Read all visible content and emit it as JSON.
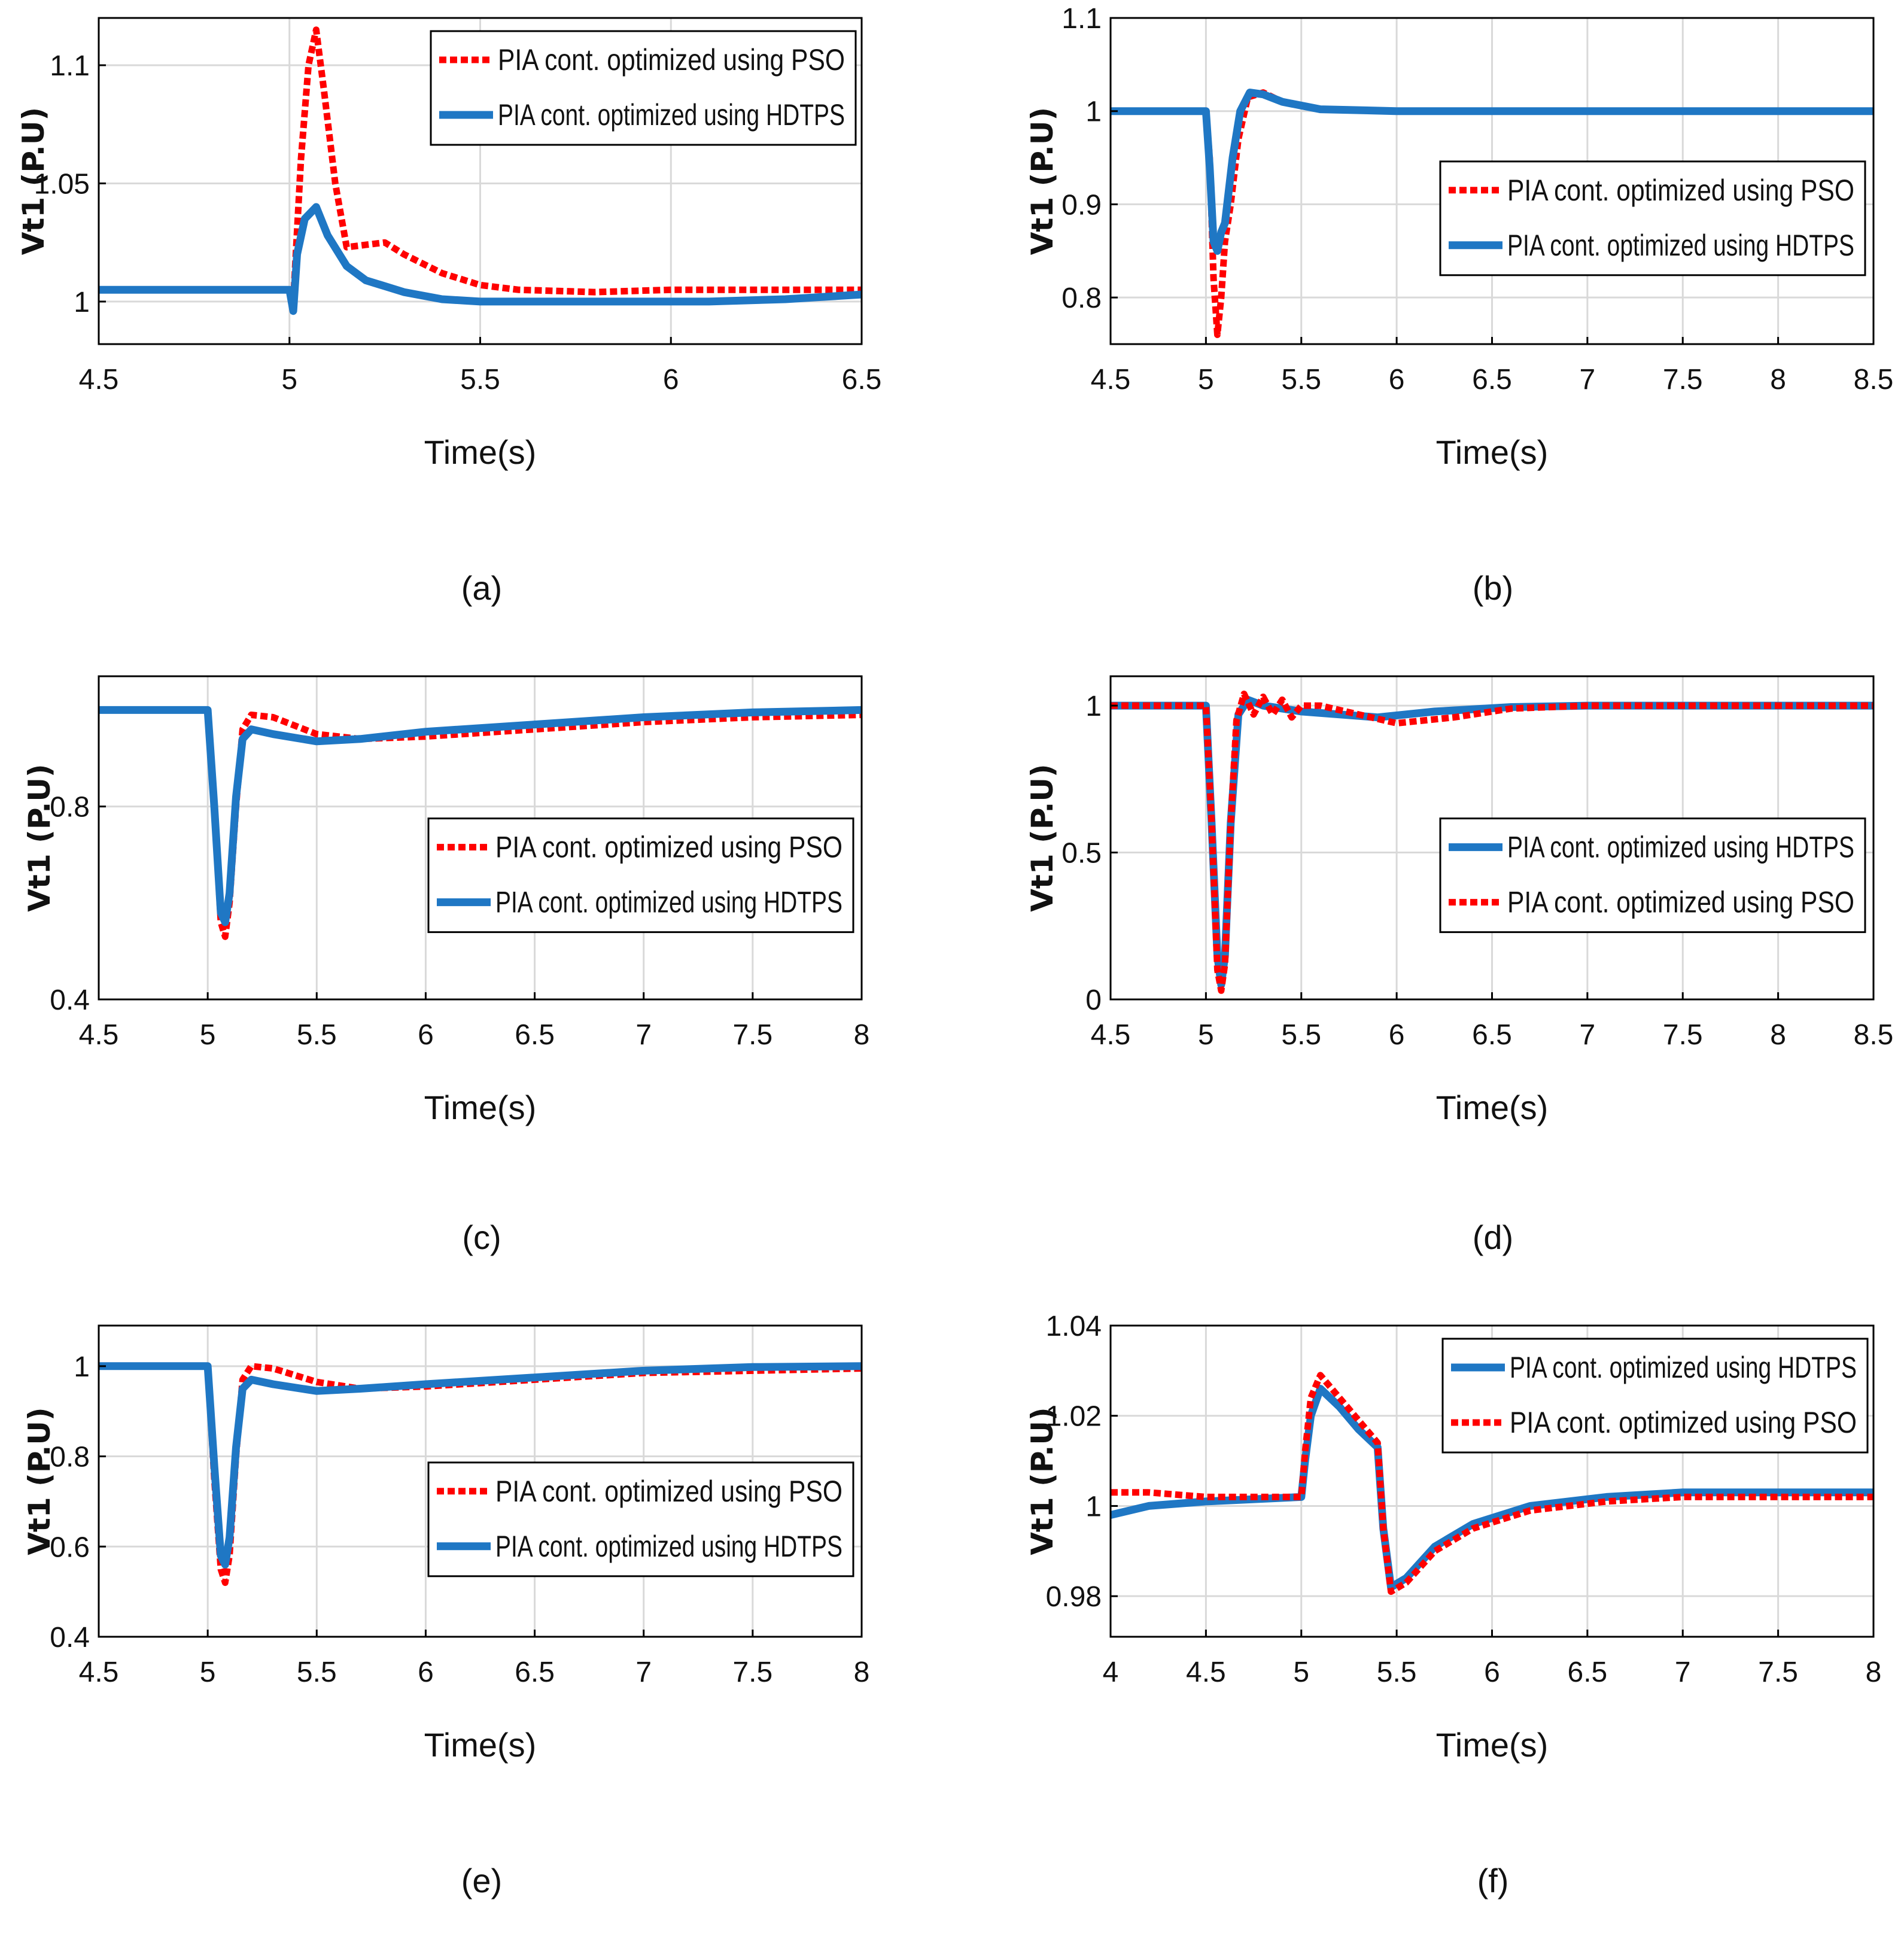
{
  "colors": {
    "pso": "#ff0000",
    "hdtps": "#1f77c4",
    "grid": "#d9d9d9",
    "axis": "#000000"
  },
  "chart_data": [
    {
      "type": "line",
      "caption": "(a)",
      "title": "",
      "xlabel": "Time(s)",
      "ylabel": "Vt1 (P.U)",
      "xlim": [
        4.5,
        6.5
      ],
      "ylim": [
        0.982,
        1.12
      ],
      "xticks": [
        4.5,
        5,
        5.5,
        6,
        6.5
      ],
      "xtick_labels": [
        "4.5",
        "5",
        "5.5",
        "6",
        "6.5"
      ],
      "yticks": [
        1,
        1.05,
        1.1
      ],
      "ytick_labels": [
        "1",
        "1.05",
        "1.1"
      ],
      "grid": true,
      "legend_position": "top-right",
      "series": [
        {
          "name": "PIA cont. optimized using PSO",
          "key": "pso",
          "style": "dotted",
          "x": [
            4.5,
            5.0,
            5.01,
            5.03,
            5.05,
            5.07,
            5.09,
            5.12,
            5.15,
            5.2,
            5.25,
            5.3,
            5.4,
            5.5,
            5.6,
            5.8,
            6.0,
            6.2,
            6.5
          ],
          "y": [
            1.005,
            1.005,
            1.0,
            1.06,
            1.1,
            1.115,
            1.09,
            1.05,
            1.023,
            1.024,
            1.025,
            1.02,
            1.012,
            1.007,
            1.005,
            1.004,
            1.005,
            1.005,
            1.005
          ]
        },
        {
          "name": "PIA cont. optimized using HDTPS",
          "key": "hdtps",
          "style": "solid",
          "x": [
            4.5,
            5.0,
            5.01,
            5.02,
            5.04,
            5.07,
            5.1,
            5.15,
            5.2,
            5.3,
            5.4,
            5.5,
            5.7,
            5.9,
            6.1,
            6.3,
            6.5
          ],
          "y": [
            1.005,
            1.005,
            0.996,
            1.02,
            1.035,
            1.04,
            1.028,
            1.015,
            1.009,
            1.004,
            1.001,
            1.0,
            1.0,
            1.0,
            1.0,
            1.001,
            1.003
          ]
        }
      ]
    },
    {
      "type": "line",
      "caption": "(b)",
      "title": "",
      "xlabel": "Time(s)",
      "ylabel": "Vt1 (P.U)",
      "xlim": [
        4.5,
        8.5
      ],
      "ylim": [
        0.75,
        1.1
      ],
      "xticks": [
        4.5,
        5,
        5.5,
        6,
        6.5,
        7,
        7.5,
        8,
        8.5
      ],
      "xtick_labels": [
        "4.5",
        "5",
        "5.5",
        "6",
        "6.5",
        "7",
        "7.5",
        "8",
        "8.5"
      ],
      "yticks": [
        0.8,
        0.9,
        1,
        1.1
      ],
      "ytick_labels": [
        "0.8",
        "0.9",
        "1",
        "1.1"
      ],
      "grid": true,
      "legend_position": "center-right",
      "series": [
        {
          "name": "PIA cont. optimized using PSO",
          "key": "pso",
          "style": "dotted",
          "x": [
            4.5,
            5.0,
            5.02,
            5.04,
            5.06,
            5.08,
            5.1,
            5.13,
            5.17,
            5.22,
            5.3,
            5.4,
            5.6,
            6.0,
            7.0,
            8.5
          ],
          "y": [
            1.0,
            1.0,
            0.95,
            0.82,
            0.76,
            0.8,
            0.86,
            0.9,
            0.97,
            1.015,
            1.02,
            1.01,
            1.002,
            1.0,
            1.0,
            1.0
          ]
        },
        {
          "name": "PIA cont. optimized using HDTPS",
          "key": "hdtps",
          "style": "solid",
          "x": [
            4.5,
            5.0,
            5.02,
            5.04,
            5.06,
            5.08,
            5.1,
            5.14,
            5.18,
            5.23,
            5.3,
            5.4,
            5.6,
            6.0,
            7.0,
            8.5
          ],
          "y": [
            1.0,
            1.0,
            0.94,
            0.86,
            0.85,
            0.87,
            0.88,
            0.95,
            1.0,
            1.02,
            1.018,
            1.01,
            1.002,
            1.0,
            1.0,
            1.0
          ]
        }
      ]
    },
    {
      "type": "line",
      "caption": "(c)",
      "title": "",
      "xlabel": "Time(s)",
      "ylabel": "Vt1 (P.U)",
      "xlim": [
        4.5,
        8
      ],
      "ylim": [
        0.4,
        1.07
      ],
      "xticks": [
        4.5,
        5,
        5.5,
        6,
        6.5,
        7,
        7.5,
        8
      ],
      "xtick_labels": [
        "4.5",
        "5",
        "5.5",
        "6",
        "6.5",
        "7",
        "7.5",
        "8"
      ],
      "yticks": [
        0.4,
        0.8
      ],
      "ytick_labels": [
        "0.4",
        "0.8"
      ],
      "grid": true,
      "legend_position": "center-right",
      "series": [
        {
          "name": "PIA cont. optimized using PSO",
          "key": "pso",
          "style": "dotted",
          "x": [
            4.5,
            5.0,
            5.03,
            5.06,
            5.08,
            5.1,
            5.13,
            5.16,
            5.2,
            5.3,
            5.5,
            5.7,
            6.0,
            6.5,
            7.0,
            7.5,
            8.0
          ],
          "y": [
            1.0,
            1.0,
            0.8,
            0.56,
            0.53,
            0.6,
            0.8,
            0.96,
            0.99,
            0.985,
            0.95,
            0.94,
            0.945,
            0.96,
            0.975,
            0.985,
            0.99
          ]
        },
        {
          "name": "PIA cont. optimized using HDTPS",
          "key": "hdtps",
          "style": "solid",
          "x": [
            4.5,
            5.0,
            5.03,
            5.06,
            5.08,
            5.1,
            5.13,
            5.16,
            5.2,
            5.3,
            5.5,
            5.7,
            6.0,
            6.5,
            7.0,
            7.5,
            8.0
          ],
          "y": [
            1.0,
            1.0,
            0.8,
            0.58,
            0.56,
            0.62,
            0.82,
            0.94,
            0.96,
            0.95,
            0.935,
            0.94,
            0.955,
            0.97,
            0.985,
            0.995,
            1.0
          ]
        }
      ]
    },
    {
      "type": "line",
      "caption": "(d)",
      "title": "",
      "xlabel": "Time(s)",
      "ylabel": "Vt1 (P.U)",
      "xlim": [
        4.5,
        8.5
      ],
      "ylim": [
        0,
        1.1
      ],
      "xticks": [
        4.5,
        5,
        5.5,
        6,
        6.5,
        7,
        7.5,
        8,
        8.5
      ],
      "xtick_labels": [
        "4.5",
        "5",
        "5.5",
        "6",
        "6.5",
        "7",
        "7.5",
        "8",
        "8.5"
      ],
      "yticks": [
        0,
        0.5,
        1
      ],
      "ytick_labels": [
        "0",
        "0.5",
        "1"
      ],
      "grid": true,
      "legend_position": "center-right",
      "series": [
        {
          "name": "PIA cont. optimized using HDTPS",
          "key": "hdtps",
          "style": "solid",
          "x": [
            4.5,
            5.0,
            5.03,
            5.06,
            5.08,
            5.1,
            5.13,
            5.17,
            5.22,
            5.3,
            5.5,
            5.7,
            5.9,
            6.2,
            6.6,
            7.0,
            8.5
          ],
          "y": [
            1.0,
            1.0,
            0.6,
            0.15,
            0.05,
            0.15,
            0.6,
            0.97,
            1.02,
            1.0,
            0.98,
            0.97,
            0.96,
            0.98,
            0.995,
            1.0,
            1.0
          ]
        },
        {
          "name": "PIA cont. optimized using PSO",
          "key": "pso",
          "style": "dotted",
          "x": [
            4.5,
            5.0,
            5.03,
            5.06,
            5.08,
            5.1,
            5.13,
            5.16,
            5.2,
            5.25,
            5.3,
            5.35,
            5.4,
            5.45,
            5.5,
            5.6,
            5.8,
            6.0,
            6.3,
            6.6,
            7.0,
            8.5
          ],
          "y": [
            1.0,
            1.0,
            0.6,
            0.1,
            0.03,
            0.12,
            0.6,
            0.95,
            1.04,
            0.97,
            1.03,
            0.97,
            1.02,
            0.96,
            1.0,
            1.0,
            0.97,
            0.94,
            0.96,
            0.99,
            1.0,
            1.0
          ]
        }
      ]
    },
    {
      "type": "line",
      "caption": "(e)",
      "title": "",
      "xlabel": "Time(s)",
      "ylabel": "Vt1 (P.U)",
      "xlim": [
        4.5,
        8
      ],
      "ylim": [
        0.4,
        1.09
      ],
      "xticks": [
        4.5,
        5,
        5.5,
        6,
        6.5,
        7,
        7.5,
        8
      ],
      "xtick_labels": [
        "4.5",
        "5",
        "5.5",
        "6",
        "6.5",
        "7",
        "7.5",
        "8"
      ],
      "yticks": [
        0.4,
        0.6,
        0.8,
        1
      ],
      "ytick_labels": [
        "0.4",
        "0.6",
        "0.8",
        "1"
      ],
      "grid": true,
      "legend_position": "center-right",
      "series": [
        {
          "name": "PIA cont. optimized using PSO",
          "key": "pso",
          "style": "dotted",
          "x": [
            4.5,
            5.0,
            5.03,
            5.06,
            5.08,
            5.1,
            5.13,
            5.16,
            5.2,
            5.3,
            5.5,
            5.7,
            6.0,
            6.5,
            7.0,
            7.5,
            8.0
          ],
          "y": [
            1.0,
            1.0,
            0.75,
            0.55,
            0.52,
            0.58,
            0.8,
            0.97,
            1.0,
            0.995,
            0.965,
            0.95,
            0.955,
            0.97,
            0.985,
            0.99,
            0.995
          ]
        },
        {
          "name": "PIA cont. optimized using HDTPS",
          "key": "hdtps",
          "style": "solid",
          "x": [
            4.5,
            5.0,
            5.03,
            5.06,
            5.08,
            5.1,
            5.13,
            5.16,
            5.2,
            5.3,
            5.5,
            5.7,
            6.0,
            6.5,
            7.0,
            7.5,
            8.0
          ],
          "y": [
            1.0,
            1.0,
            0.78,
            0.58,
            0.56,
            0.62,
            0.82,
            0.95,
            0.97,
            0.96,
            0.945,
            0.95,
            0.96,
            0.975,
            0.99,
            0.998,
            1.0
          ]
        }
      ]
    },
    {
      "type": "line",
      "caption": "(f)",
      "title": "",
      "xlabel": "Time(s)",
      "ylabel": "Vt1 (P.U)",
      "xlim": [
        4,
        8
      ],
      "ylim": [
        0.971,
        1.04
      ],
      "xticks": [
        4,
        4.5,
        5,
        5.5,
        6,
        6.5,
        7,
        7.5,
        8
      ],
      "xtick_labels": [
        "4",
        "4.5",
        "5",
        "5.5",
        "6",
        "6.5",
        "7",
        "7.5",
        "8"
      ],
      "yticks": [
        0.98,
        1,
        1.02,
        1.04
      ],
      "ytick_labels": [
        "0.98",
        "1",
        "1.02",
        "1.04"
      ],
      "grid": true,
      "legend_position": "top-right",
      "series": [
        {
          "name": "PIA cont. optimized using HDTPS",
          "key": "hdtps",
          "style": "solid",
          "x": [
            4.0,
            4.2,
            4.5,
            5.0,
            5.02,
            5.05,
            5.1,
            5.2,
            5.3,
            5.4,
            5.43,
            5.47,
            5.55,
            5.7,
            5.9,
            6.2,
            6.6,
            7.0,
            8.0
          ],
          "y": [
            0.998,
            1.0,
            1.001,
            1.002,
            1.01,
            1.02,
            1.026,
            1.022,
            1.017,
            1.013,
            0.995,
            0.982,
            0.984,
            0.991,
            0.996,
            1.0,
            1.002,
            1.003,
            1.003
          ]
        },
        {
          "name": "PIA cont. optimized using PSO",
          "key": "pso",
          "style": "dotted",
          "x": [
            4.0,
            4.2,
            4.5,
            5.0,
            5.02,
            5.05,
            5.1,
            5.2,
            5.3,
            5.4,
            5.43,
            5.47,
            5.55,
            5.7,
            5.9,
            6.2,
            6.6,
            7.0,
            8.0
          ],
          "y": [
            1.003,
            1.003,
            1.002,
            1.002,
            1.012,
            1.024,
            1.029,
            1.024,
            1.019,
            1.014,
            0.995,
            0.981,
            0.983,
            0.99,
            0.995,
            0.999,
            1.001,
            1.002,
            1.002
          ]
        }
      ]
    }
  ]
}
